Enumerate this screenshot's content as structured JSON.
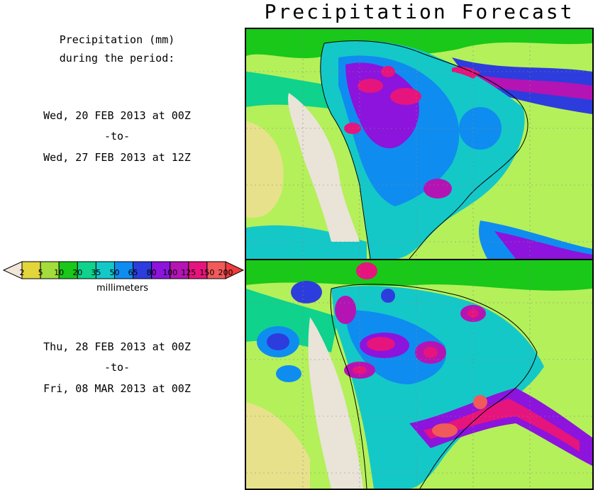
{
  "title": "Precipitation Forecast",
  "intro": {
    "line1": "Precipitation (mm)",
    "line2": "during the period:"
  },
  "period1": {
    "start": "Wed, 20 FEB 2013 at 00Z",
    "sep": "-to-",
    "end": "Wed, 27 FEB 2013 at 12Z"
  },
  "period2": {
    "start": "Thu, 28 FEB 2013 at 00Z",
    "sep": "-to-",
    "end": "Fri, 08 MAR 2013 at 00Z"
  },
  "legend": {
    "units": "millimeters",
    "ticks": [
      "2",
      "5",
      "10",
      "20",
      "35",
      "50",
      "65",
      "80",
      "100",
      "125",
      "150",
      "200"
    ],
    "colors": [
      "#e3d53c",
      "#a3dc3c",
      "#19c819",
      "#0fd28c",
      "#14c8c8",
      "#0f8cf0",
      "#2d3cdc",
      "#8c14dc",
      "#b414b4",
      "#e6147d",
      "#f05a5a"
    ],
    "low_color": "#f2e6d9",
    "high_color": "#f03c3c"
  },
  "map_colors": {
    "background": "#b4f05a",
    "land": "#eae3d8",
    "ocean_pale": "#e8e18c"
  }
}
